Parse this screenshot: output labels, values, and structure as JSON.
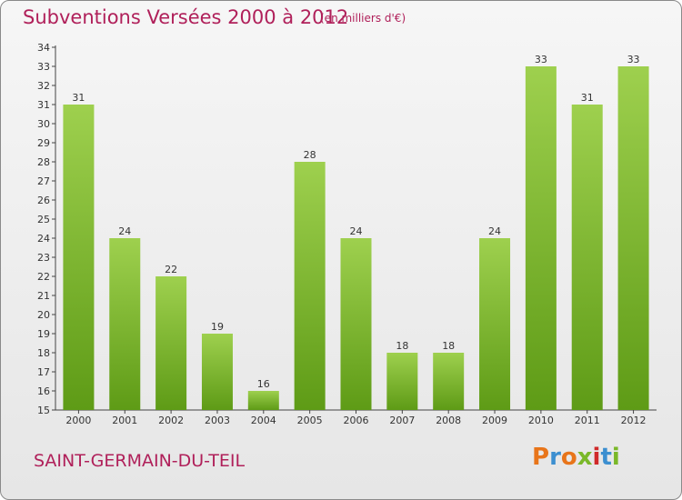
{
  "header": {
    "title": "Subventions Versées 2000 à 2012",
    "subtitle": "(en milliers d'€)"
  },
  "footer": {
    "commune": "SAINT-GERMAIN-DU-TEIL",
    "logo_text": "Proxiti",
    "logo_colors": [
      "#e8751a",
      "#3c8fd0",
      "#e8751a",
      "#7ab829",
      "#d02a2a",
      "#3c8fd0",
      "#7ab829"
    ]
  },
  "colors": {
    "title": "#b0205a",
    "bar_light": "#9ed04e",
    "bar_dark": "#5e9b16"
  },
  "chart_data": {
    "type": "bar",
    "title": "Subventions Versées 2000 à 2012",
    "subtitle": "(en milliers d'€)",
    "categories": [
      "2000",
      "2001",
      "2002",
      "2003",
      "2004",
      "2005",
      "2006",
      "2007",
      "2008",
      "2009",
      "2010",
      "2011",
      "2012"
    ],
    "values": [
      31,
      24,
      22,
      19,
      16,
      28,
      24,
      18,
      18,
      24,
      33,
      31,
      33
    ],
    "ylim": [
      15,
      34
    ],
    "yticks": [
      15,
      16,
      17,
      18,
      19,
      20,
      21,
      22,
      23,
      24,
      25,
      26,
      27,
      28,
      29,
      30,
      31,
      32,
      33,
      34
    ],
    "grid": false,
    "legend": "none"
  }
}
